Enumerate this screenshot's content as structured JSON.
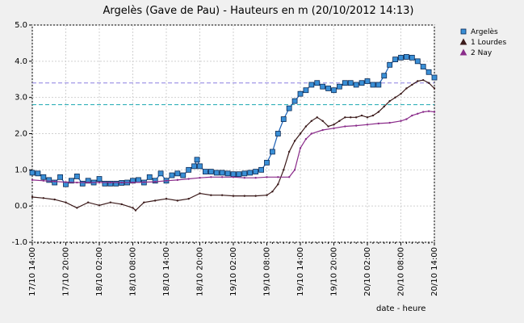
{
  "chart_data": {
    "type": "line",
    "title": "Argelès (Gave de Pau) - Hauteurs en m (20/10/2012 14:13)",
    "xlabel": "date - heure",
    "ylabel": "",
    "ylim": [
      -1.0,
      5.0
    ],
    "yticks": [
      "5.0",
      "4.0",
      "3.0",
      "2.0",
      "1.0",
      "0.0",
      "-1.0"
    ],
    "xticks": [
      "17/10 14:00",
      "17/10 20:00",
      "18/10 02:00",
      "18/10 08:00",
      "18/10 14:00",
      "18/10 20:00",
      "19/10 02:00",
      "19/10 08:00",
      "19/10 14:00",
      "19/10 20:00",
      "20/10 02:00",
      "20/10 08:00",
      "20/10 14:00"
    ],
    "x_unit": "hours since 17/10 14:00",
    "grid": true,
    "legend_position": "top-right",
    "thresholds": [
      {
        "value": 3.4,
        "color": "#8a7fe0",
        "style": "dashed"
      },
      {
        "value": 2.8,
        "color": "#1aa7b0",
        "style": "dashed"
      }
    ],
    "series": [
      {
        "name": "Argelès",
        "color": "#1a5fb4",
        "marker": "square",
        "points": [
          [
            0,
            0.92
          ],
          [
            1,
            0.9
          ],
          [
            2,
            0.8
          ],
          [
            3,
            0.72
          ],
          [
            4,
            0.65
          ],
          [
            5,
            0.8
          ],
          [
            6,
            0.6
          ],
          [
            7,
            0.7
          ],
          [
            8,
            0.82
          ],
          [
            9,
            0.62
          ],
          [
            10,
            0.7
          ],
          [
            11,
            0.65
          ],
          [
            12,
            0.75
          ],
          [
            13,
            0.62
          ],
          [
            14,
            0.62
          ],
          [
            15,
            0.62
          ],
          [
            16,
            0.64
          ],
          [
            17,
            0.65
          ],
          [
            18,
            0.7
          ],
          [
            19,
            0.72
          ],
          [
            20,
            0.65
          ],
          [
            21,
            0.8
          ],
          [
            22,
            0.7
          ],
          [
            23,
            0.9
          ],
          [
            24,
            0.7
          ],
          [
            25,
            0.85
          ],
          [
            26,
            0.9
          ],
          [
            27,
            0.85
          ],
          [
            28,
            1.0
          ],
          [
            29,
            1.1
          ],
          [
            29.5,
            1.28
          ],
          [
            30,
            1.1
          ],
          [
            31,
            0.95
          ],
          [
            32,
            0.95
          ],
          [
            33,
            0.92
          ],
          [
            34,
            0.92
          ],
          [
            35,
            0.9
          ],
          [
            36,
            0.88
          ],
          [
            37,
            0.88
          ],
          [
            38,
            0.9
          ],
          [
            39,
            0.92
          ],
          [
            40,
            0.95
          ],
          [
            41,
            1.0
          ],
          [
            42,
            1.2
          ],
          [
            43,
            1.5
          ],
          [
            44,
            2.0
          ],
          [
            45,
            2.4
          ],
          [
            46,
            2.7
          ],
          [
            47,
            2.9
          ],
          [
            48,
            3.1
          ],
          [
            49,
            3.2
          ],
          [
            50,
            3.35
          ],
          [
            51,
            3.4
          ],
          [
            52,
            3.3
          ],
          [
            53,
            3.25
          ],
          [
            54,
            3.2
          ],
          [
            55,
            3.3
          ],
          [
            56,
            3.4
          ],
          [
            57,
            3.4
          ],
          [
            58,
            3.35
          ],
          [
            59,
            3.4
          ],
          [
            60,
            3.45
          ],
          [
            61,
            3.35
          ],
          [
            62,
            3.35
          ],
          [
            63,
            3.6
          ],
          [
            64,
            3.9
          ],
          [
            65,
            4.05
          ],
          [
            66,
            4.1
          ],
          [
            67,
            4.12
          ],
          [
            68,
            4.1
          ],
          [
            69,
            4.0
          ],
          [
            70,
            3.85
          ],
          [
            71,
            3.7
          ],
          [
            72,
            3.55
          ]
        ]
      },
      {
        "name": "1 Lourdes",
        "color": "#3b1a1a",
        "marker": "triangle",
        "points": [
          [
            0,
            0.25
          ],
          [
            2,
            0.22
          ],
          [
            4,
            0.18
          ],
          [
            6,
            0.1
          ],
          [
            8,
            -0.05
          ],
          [
            10,
            0.1
          ],
          [
            12,
            0.02
          ],
          [
            14,
            0.1
          ],
          [
            16,
            0.05
          ],
          [
            18,
            -0.05
          ],
          [
            18.5,
            -0.12
          ],
          [
            20,
            0.1
          ],
          [
            22,
            0.15
          ],
          [
            24,
            0.2
          ],
          [
            26,
            0.15
          ],
          [
            28,
            0.2
          ],
          [
            30,
            0.35
          ],
          [
            32,
            0.3
          ],
          [
            34,
            0.3
          ],
          [
            36,
            0.28
          ],
          [
            38,
            0.28
          ],
          [
            40,
            0.28
          ],
          [
            42,
            0.3
          ],
          [
            43,
            0.4
          ],
          [
            44,
            0.6
          ],
          [
            45,
            1.0
          ],
          [
            46,
            1.5
          ],
          [
            47,
            1.8
          ],
          [
            48,
            2.0
          ],
          [
            49,
            2.2
          ],
          [
            50,
            2.35
          ],
          [
            51,
            2.45
          ],
          [
            52,
            2.35
          ],
          [
            53,
            2.2
          ],
          [
            54,
            2.25
          ],
          [
            55,
            2.35
          ],
          [
            56,
            2.45
          ],
          [
            57,
            2.45
          ],
          [
            58,
            2.45
          ],
          [
            59,
            2.5
          ],
          [
            60,
            2.45
          ],
          [
            61,
            2.5
          ],
          [
            62,
            2.6
          ],
          [
            63,
            2.75
          ],
          [
            64,
            2.9
          ],
          [
            65,
            3.0
          ],
          [
            66,
            3.1
          ],
          [
            67,
            3.25
          ],
          [
            68,
            3.35
          ],
          [
            69,
            3.45
          ],
          [
            70,
            3.48
          ],
          [
            71,
            3.4
          ],
          [
            72,
            3.25
          ]
        ]
      },
      {
        "name": "2 Nay",
        "color": "#8a2c8a",
        "marker": "triangle",
        "points": [
          [
            0,
            0.72
          ],
          [
            2,
            0.7
          ],
          [
            4,
            0.68
          ],
          [
            6,
            0.66
          ],
          [
            8,
            0.65
          ],
          [
            10,
            0.65
          ],
          [
            12,
            0.65
          ],
          [
            14,
            0.65
          ],
          [
            16,
            0.65
          ],
          [
            18,
            0.65
          ],
          [
            20,
            0.66
          ],
          [
            22,
            0.67
          ],
          [
            24,
            0.7
          ],
          [
            26,
            0.72
          ],
          [
            28,
            0.75
          ],
          [
            30,
            0.78
          ],
          [
            32,
            0.8
          ],
          [
            34,
            0.8
          ],
          [
            36,
            0.8
          ],
          [
            38,
            0.78
          ],
          [
            40,
            0.78
          ],
          [
            42,
            0.8
          ],
          [
            44,
            0.8
          ],
          [
            46,
            0.8
          ],
          [
            47,
            1.0
          ],
          [
            48,
            1.6
          ],
          [
            49,
            1.85
          ],
          [
            50,
            2.0
          ],
          [
            52,
            2.1
          ],
          [
            54,
            2.15
          ],
          [
            56,
            2.2
          ],
          [
            58,
            2.22
          ],
          [
            60,
            2.25
          ],
          [
            62,
            2.28
          ],
          [
            64,
            2.3
          ],
          [
            66,
            2.35
          ],
          [
            67,
            2.4
          ],
          [
            68,
            2.5
          ],
          [
            69,
            2.55
          ],
          [
            70,
            2.6
          ],
          [
            71,
            2.62
          ],
          [
            72,
            2.6
          ]
        ]
      }
    ]
  }
}
